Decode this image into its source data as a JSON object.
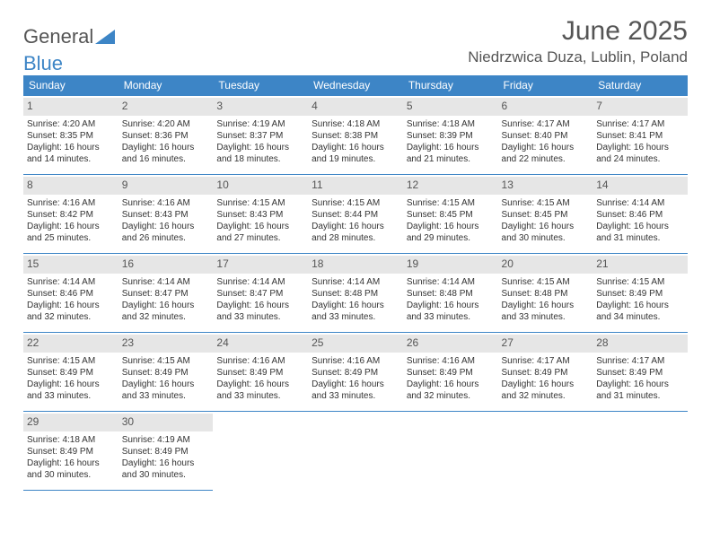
{
  "logo": {
    "text1": "General",
    "text2": "Blue"
  },
  "title": "June 2025",
  "location": "Niedrzwica Duza, Lublin, Poland",
  "colors": {
    "header_bg": "#3d85c6",
    "header_text": "#ffffff",
    "daynum_bg": "#e6e6e6",
    "text": "#333333",
    "rule": "#3d85c6",
    "page_bg": "#ffffff"
  },
  "layout": {
    "columns": 7,
    "rows": 5,
    "first_weekday": "Sunday"
  },
  "day_headers": [
    "Sunday",
    "Monday",
    "Tuesday",
    "Wednesday",
    "Thursday",
    "Friday",
    "Saturday"
  ],
  "font": {
    "header_size": 12,
    "daynum_size": 12,
    "body_size": 10,
    "title_size": 30,
    "location_size": 17
  },
  "days": [
    {
      "n": 1,
      "sunrise": "4:20 AM",
      "sunset": "8:35 PM",
      "dl_h": 16,
      "dl_m": 14
    },
    {
      "n": 2,
      "sunrise": "4:20 AM",
      "sunset": "8:36 PM",
      "dl_h": 16,
      "dl_m": 16
    },
    {
      "n": 3,
      "sunrise": "4:19 AM",
      "sunset": "8:37 PM",
      "dl_h": 16,
      "dl_m": 18
    },
    {
      "n": 4,
      "sunrise": "4:18 AM",
      "sunset": "8:38 PM",
      "dl_h": 16,
      "dl_m": 19
    },
    {
      "n": 5,
      "sunrise": "4:18 AM",
      "sunset": "8:39 PM",
      "dl_h": 16,
      "dl_m": 21
    },
    {
      "n": 6,
      "sunrise": "4:17 AM",
      "sunset": "8:40 PM",
      "dl_h": 16,
      "dl_m": 22
    },
    {
      "n": 7,
      "sunrise": "4:17 AM",
      "sunset": "8:41 PM",
      "dl_h": 16,
      "dl_m": 24
    },
    {
      "n": 8,
      "sunrise": "4:16 AM",
      "sunset": "8:42 PM",
      "dl_h": 16,
      "dl_m": 25
    },
    {
      "n": 9,
      "sunrise": "4:16 AM",
      "sunset": "8:43 PM",
      "dl_h": 16,
      "dl_m": 26
    },
    {
      "n": 10,
      "sunrise": "4:15 AM",
      "sunset": "8:43 PM",
      "dl_h": 16,
      "dl_m": 27
    },
    {
      "n": 11,
      "sunrise": "4:15 AM",
      "sunset": "8:44 PM",
      "dl_h": 16,
      "dl_m": 28
    },
    {
      "n": 12,
      "sunrise": "4:15 AM",
      "sunset": "8:45 PM",
      "dl_h": 16,
      "dl_m": 29
    },
    {
      "n": 13,
      "sunrise": "4:15 AM",
      "sunset": "8:45 PM",
      "dl_h": 16,
      "dl_m": 30
    },
    {
      "n": 14,
      "sunrise": "4:14 AM",
      "sunset": "8:46 PM",
      "dl_h": 16,
      "dl_m": 31
    },
    {
      "n": 15,
      "sunrise": "4:14 AM",
      "sunset": "8:46 PM",
      "dl_h": 16,
      "dl_m": 32
    },
    {
      "n": 16,
      "sunrise": "4:14 AM",
      "sunset": "8:47 PM",
      "dl_h": 16,
      "dl_m": 32
    },
    {
      "n": 17,
      "sunrise": "4:14 AM",
      "sunset": "8:47 PM",
      "dl_h": 16,
      "dl_m": 33
    },
    {
      "n": 18,
      "sunrise": "4:14 AM",
      "sunset": "8:48 PM",
      "dl_h": 16,
      "dl_m": 33
    },
    {
      "n": 19,
      "sunrise": "4:14 AM",
      "sunset": "8:48 PM",
      "dl_h": 16,
      "dl_m": 33
    },
    {
      "n": 20,
      "sunrise": "4:15 AM",
      "sunset": "8:48 PM",
      "dl_h": 16,
      "dl_m": 33
    },
    {
      "n": 21,
      "sunrise": "4:15 AM",
      "sunset": "8:49 PM",
      "dl_h": 16,
      "dl_m": 34
    },
    {
      "n": 22,
      "sunrise": "4:15 AM",
      "sunset": "8:49 PM",
      "dl_h": 16,
      "dl_m": 33
    },
    {
      "n": 23,
      "sunrise": "4:15 AM",
      "sunset": "8:49 PM",
      "dl_h": 16,
      "dl_m": 33
    },
    {
      "n": 24,
      "sunrise": "4:16 AM",
      "sunset": "8:49 PM",
      "dl_h": 16,
      "dl_m": 33
    },
    {
      "n": 25,
      "sunrise": "4:16 AM",
      "sunset": "8:49 PM",
      "dl_h": 16,
      "dl_m": 33
    },
    {
      "n": 26,
      "sunrise": "4:16 AM",
      "sunset": "8:49 PM",
      "dl_h": 16,
      "dl_m": 32
    },
    {
      "n": 27,
      "sunrise": "4:17 AM",
      "sunset": "8:49 PM",
      "dl_h": 16,
      "dl_m": 32
    },
    {
      "n": 28,
      "sunrise": "4:17 AM",
      "sunset": "8:49 PM",
      "dl_h": 16,
      "dl_m": 31
    },
    {
      "n": 29,
      "sunrise": "4:18 AM",
      "sunset": "8:49 PM",
      "dl_h": 16,
      "dl_m": 30
    },
    {
      "n": 30,
      "sunrise": "4:19 AM",
      "sunset": "8:49 PM",
      "dl_h": 16,
      "dl_m": 30
    }
  ],
  "labels": {
    "sunrise": "Sunrise:",
    "sunset": "Sunset:",
    "daylight_prefix": "Daylight:",
    "hours": "hours",
    "and": "and",
    "minutes": "minutes."
  }
}
